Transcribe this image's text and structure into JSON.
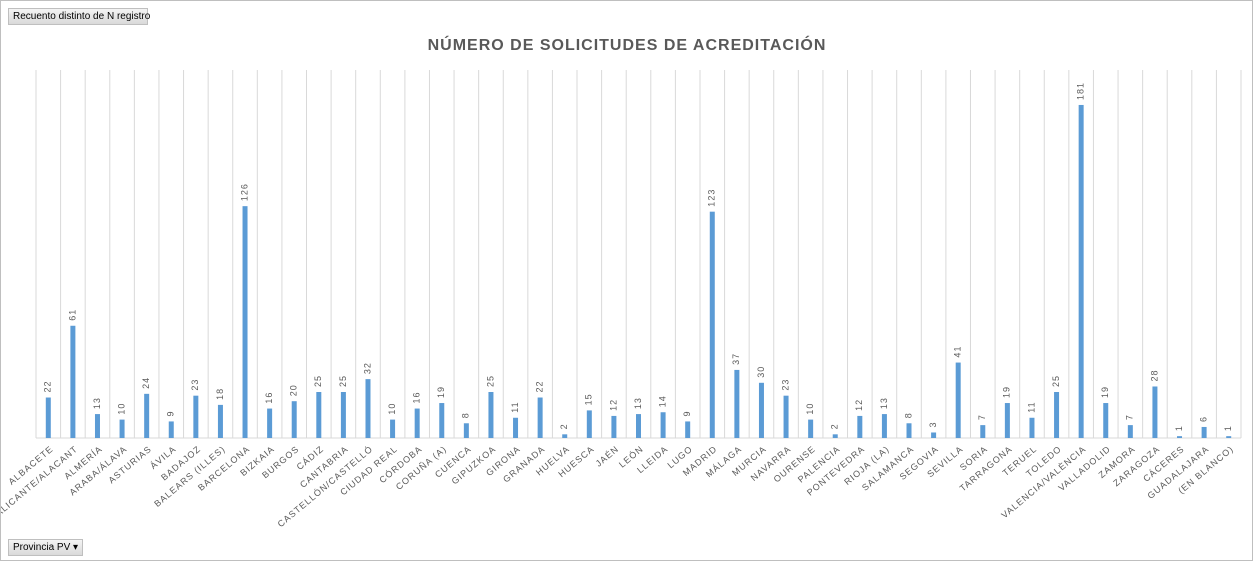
{
  "pivot": {
    "value_field": "Recuento distinto de N registro",
    "axis_field": "Provincia PV"
  },
  "chart_data": {
    "type": "bar",
    "title": "NÚMERO DE SOLICITUDES DE ACREDITACIÓN",
    "categories": [
      "ALBACETE",
      "ALICANTE/ALACANT",
      "ALMERÍA",
      "ARABA/ÁLAVA",
      "ASTURIAS",
      "ÁVILA",
      "BADAJOZ",
      "BALEARS (ILLES)",
      "BARCELONA",
      "BIZKAIA",
      "BURGOS",
      "CÁDIZ",
      "CANTABRIA",
      "CASTELLÓN/CASTELLÓ",
      "CIUDAD REAL",
      "CÓRDOBA",
      "CORUÑA (A)",
      "CUENCA",
      "GIPUZKOA",
      "GIRONA",
      "GRANADA",
      "HUELVA",
      "HUESCA",
      "JAÉN",
      "LEÓN",
      "LLEIDA",
      "LUGO",
      "MADRID",
      "MÁLAGA",
      "MURCIA",
      "NAVARRA",
      "OURENSE",
      "PALENCIA",
      "PONTEVEDRA",
      "RIOJA (LA)",
      "SALAMANCA",
      "SEGOVIA",
      "SEVILLA",
      "SORIA",
      "TARRAGONA",
      "TERUEL",
      "TOLEDO",
      "VALENCIA/VALÈNCIA",
      "VALLADOLID",
      "ZAMORA",
      "ZARAGOZA",
      "CÁCERES",
      "GUADALAJARA",
      "(EN BLANCO)"
    ],
    "values": [
      22,
      61,
      13,
      10,
      24,
      9,
      23,
      18,
      126,
      16,
      20,
      25,
      25,
      32,
      10,
      16,
      19,
      8,
      25,
      11,
      22,
      2,
      15,
      12,
      13,
      14,
      9,
      123,
      37,
      30,
      23,
      10,
      2,
      12,
      13,
      8,
      3,
      41,
      7,
      19,
      11,
      25,
      181,
      19,
      7,
      28,
      1,
      6,
      1
    ],
    "color": "#5b9bd5",
    "ylim": [
      0,
      200
    ],
    "grid": true
  }
}
